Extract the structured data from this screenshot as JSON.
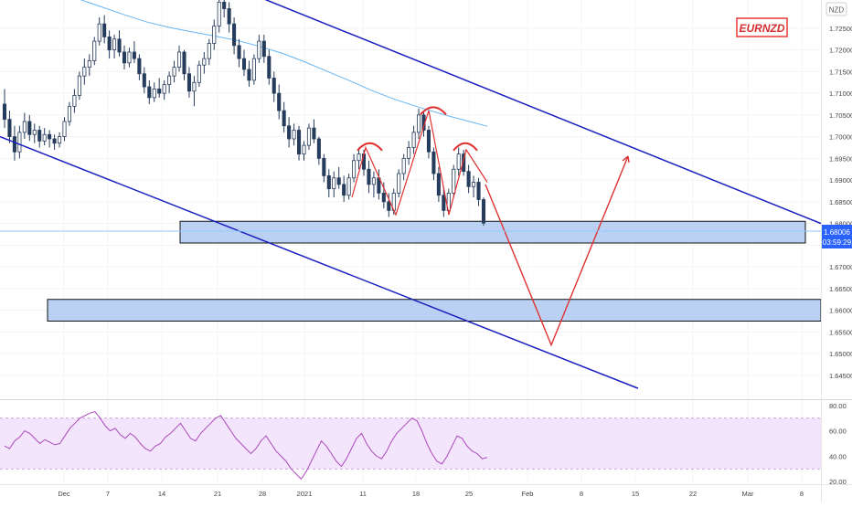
{
  "chart_data": {
    "type": "candlestick",
    "symbol_badge": "EURNZD",
    "currency_label": "NZD",
    "price_axis": {
      "ylim": [
        1.6395,
        1.7315
      ],
      "ticks": [
        "1.72500",
        "1.72000",
        "1.71500",
        "1.71000",
        "1.70500",
        "1.70000",
        "1.69500",
        "1.69000",
        "1.68500",
        "1.68000",
        "1.67500",
        "1.67000",
        "1.66500",
        "1.66000",
        "1.65500",
        "1.65000",
        "1.64500"
      ],
      "top_partial_label": "1.7"
    },
    "last_price": {
      "value": 1.68006,
      "label": "1.68006",
      "countdown": "03:59:29",
      "color": "#2962ff"
    },
    "time_axis": {
      "labels": [
        "Dec",
        "7",
        "14",
        "21",
        "28",
        "2021",
        "11",
        "18",
        "25",
        "Feb",
        "8",
        "15",
        "22",
        "Mar",
        "8"
      ]
    },
    "ohlc_series": [
      {
        "o": 1.7075,
        "h": 1.711,
        "l": 1.702,
        "c": 1.704
      },
      {
        "o": 1.704,
        "h": 1.706,
        "l": 1.6985,
        "c": 1.7
      },
      {
        "o": 1.7,
        "h": 1.7025,
        "l": 1.6945,
        "c": 1.6965
      },
      {
        "o": 1.6965,
        "h": 1.7025,
        "l": 1.695,
        "c": 1.701
      },
      {
        "o": 1.701,
        "h": 1.7055,
        "l": 1.6995,
        "c": 1.7035
      },
      {
        "o": 1.7035,
        "h": 1.705,
        "l": 1.699,
        "c": 1.7005
      },
      {
        "o": 1.7005,
        "h": 1.703,
        "l": 1.6985,
        "c": 1.7015
      },
      {
        "o": 1.7015,
        "h": 1.7025,
        "l": 1.6975,
        "c": 1.699
      },
      {
        "o": 1.699,
        "h": 1.702,
        "l": 1.698,
        "c": 1.7005
      },
      {
        "o": 1.7005,
        "h": 1.7015,
        "l": 1.6975,
        "c": 1.6995
      },
      {
        "o": 1.6995,
        "h": 1.7005,
        "l": 1.697,
        "c": 1.6985
      },
      {
        "o": 1.6985,
        "h": 1.701,
        "l": 1.6975,
        "c": 1.7
      },
      {
        "o": 1.7,
        "h": 1.7045,
        "l": 1.699,
        "c": 1.7035
      },
      {
        "o": 1.7035,
        "h": 1.708,
        "l": 1.7025,
        "c": 1.707
      },
      {
        "o": 1.707,
        "h": 1.711,
        "l": 1.7055,
        "c": 1.7095
      },
      {
        "o": 1.7095,
        "h": 1.715,
        "l": 1.7085,
        "c": 1.714
      },
      {
        "o": 1.714,
        "h": 1.718,
        "l": 1.712,
        "c": 1.716
      },
      {
        "o": 1.716,
        "h": 1.719,
        "l": 1.714,
        "c": 1.7175
      },
      {
        "o": 1.7175,
        "h": 1.723,
        "l": 1.7165,
        "c": 1.722
      },
      {
        "o": 1.722,
        "h": 1.7275,
        "l": 1.721,
        "c": 1.726
      },
      {
        "o": 1.726,
        "h": 1.728,
        "l": 1.7215,
        "c": 1.723
      },
      {
        "o": 1.723,
        "h": 1.7245,
        "l": 1.718,
        "c": 1.72
      },
      {
        "o": 1.72,
        "h": 1.7235,
        "l": 1.718,
        "c": 1.7225
      },
      {
        "o": 1.7225,
        "h": 1.7245,
        "l": 1.7185,
        "c": 1.7195
      },
      {
        "o": 1.7195,
        "h": 1.721,
        "l": 1.7155,
        "c": 1.717
      },
      {
        "o": 1.717,
        "h": 1.7205,
        "l": 1.716,
        "c": 1.7195
      },
      {
        "o": 1.7195,
        "h": 1.722,
        "l": 1.717,
        "c": 1.718
      },
      {
        "o": 1.718,
        "h": 1.719,
        "l": 1.713,
        "c": 1.7145
      },
      {
        "o": 1.7145,
        "h": 1.716,
        "l": 1.71,
        "c": 1.7115
      },
      {
        "o": 1.7115,
        "h": 1.713,
        "l": 1.7075,
        "c": 1.709
      },
      {
        "o": 1.709,
        "h": 1.7125,
        "l": 1.708,
        "c": 1.711
      },
      {
        "o": 1.711,
        "h": 1.7135,
        "l": 1.709,
        "c": 1.71
      },
      {
        "o": 1.71,
        "h": 1.713,
        "l": 1.7085,
        "c": 1.712
      },
      {
        "o": 1.712,
        "h": 1.715,
        "l": 1.71,
        "c": 1.714
      },
      {
        "o": 1.714,
        "h": 1.7175,
        "l": 1.7125,
        "c": 1.716
      },
      {
        "o": 1.716,
        "h": 1.721,
        "l": 1.715,
        "c": 1.7195
      },
      {
        "o": 1.7195,
        "h": 1.72,
        "l": 1.713,
        "c": 1.7145
      },
      {
        "o": 1.7145,
        "h": 1.716,
        "l": 1.709,
        "c": 1.7105
      },
      {
        "o": 1.7105,
        "h": 1.714,
        "l": 1.707,
        "c": 1.7125
      },
      {
        "o": 1.7125,
        "h": 1.7175,
        "l": 1.7115,
        "c": 1.7165
      },
      {
        "o": 1.7165,
        "h": 1.7195,
        "l": 1.7145,
        "c": 1.718
      },
      {
        "o": 1.718,
        "h": 1.7225,
        "l": 1.7165,
        "c": 1.7215
      },
      {
        "o": 1.7215,
        "h": 1.727,
        "l": 1.72,
        "c": 1.7255
      },
      {
        "o": 1.7255,
        "h": 1.733,
        "l": 1.724,
        "c": 1.731
      },
      {
        "o": 1.731,
        "h": 1.733,
        "l": 1.7275,
        "c": 1.7295
      },
      {
        "o": 1.7295,
        "h": 1.731,
        "l": 1.724,
        "c": 1.726
      },
      {
        "o": 1.726,
        "h": 1.7275,
        "l": 1.719,
        "c": 1.721
      },
      {
        "o": 1.721,
        "h": 1.7225,
        "l": 1.716,
        "c": 1.718
      },
      {
        "o": 1.718,
        "h": 1.72,
        "l": 1.714,
        "c": 1.7155
      },
      {
        "o": 1.7155,
        "h": 1.7175,
        "l": 1.7115,
        "c": 1.713
      },
      {
        "o": 1.713,
        "h": 1.719,
        "l": 1.712,
        "c": 1.718
      },
      {
        "o": 1.718,
        "h": 1.7235,
        "l": 1.717,
        "c": 1.722
      },
      {
        "o": 1.722,
        "h": 1.7235,
        "l": 1.717,
        "c": 1.7185
      },
      {
        "o": 1.7185,
        "h": 1.72,
        "l": 1.712,
        "c": 1.7135
      },
      {
        "o": 1.7135,
        "h": 1.715,
        "l": 1.708,
        "c": 1.71
      },
      {
        "o": 1.71,
        "h": 1.712,
        "l": 1.704,
        "c": 1.706
      },
      {
        "o": 1.706,
        "h": 1.708,
        "l": 1.701,
        "c": 1.7025
      },
      {
        "o": 1.7025,
        "h": 1.7045,
        "l": 1.6975,
        "c": 1.6995
      },
      {
        "o": 1.6995,
        "h": 1.703,
        "l": 1.698,
        "c": 1.7015
      },
      {
        "o": 1.7015,
        "h": 1.7025,
        "l": 1.6945,
        "c": 1.696
      },
      {
        "o": 1.696,
        "h": 1.699,
        "l": 1.6945,
        "c": 1.698
      },
      {
        "o": 1.698,
        "h": 1.703,
        "l": 1.697,
        "c": 1.702
      },
      {
        "o": 1.702,
        "h": 1.704,
        "l": 1.6985,
        "c": 1.6995
      },
      {
        "o": 1.6995,
        "h": 1.7,
        "l": 1.6935,
        "c": 1.695
      },
      {
        "o": 1.695,
        "h": 1.696,
        "l": 1.6895,
        "c": 1.691
      },
      {
        "o": 1.691,
        "h": 1.6925,
        "l": 1.686,
        "c": 1.688
      },
      {
        "o": 1.688,
        "h": 1.692,
        "l": 1.686,
        "c": 1.6905
      },
      {
        "o": 1.6905,
        "h": 1.693,
        "l": 1.688,
        "c": 1.689
      },
      {
        "o": 1.689,
        "h": 1.691,
        "l": 1.685,
        "c": 1.6865
      },
      {
        "o": 1.6865,
        "h": 1.6915,
        "l": 1.6855,
        "c": 1.6905
      },
      {
        "o": 1.6905,
        "h": 1.696,
        "l": 1.6895,
        "c": 1.6945
      },
      {
        "o": 1.6945,
        "h": 1.6975,
        "l": 1.6925,
        "c": 1.696
      },
      {
        "o": 1.696,
        "h": 1.697,
        "l": 1.691,
        "c": 1.6925
      },
      {
        "o": 1.6925,
        "h": 1.6945,
        "l": 1.687,
        "c": 1.689
      },
      {
        "o": 1.689,
        "h": 1.692,
        "l": 1.686,
        "c": 1.6905
      },
      {
        "o": 1.6905,
        "h": 1.6925,
        "l": 1.6855,
        "c": 1.687
      },
      {
        "o": 1.687,
        "h": 1.6895,
        "l": 1.6835,
        "c": 1.685
      },
      {
        "o": 1.685,
        "h": 1.687,
        "l": 1.6815,
        "c": 1.683
      },
      {
        "o": 1.683,
        "h": 1.688,
        "l": 1.682,
        "c": 1.687
      },
      {
        "o": 1.687,
        "h": 1.6925,
        "l": 1.686,
        "c": 1.6915
      },
      {
        "o": 1.6915,
        "h": 1.696,
        "l": 1.69,
        "c": 1.695
      },
      {
        "o": 1.695,
        "h": 1.699,
        "l": 1.6935,
        "c": 1.6975
      },
      {
        "o": 1.6975,
        "h": 1.7025,
        "l": 1.696,
        "c": 1.701
      },
      {
        "o": 1.701,
        "h": 1.7065,
        "l": 1.6995,
        "c": 1.705
      },
      {
        "o": 1.705,
        "h": 1.706,
        "l": 1.7,
        "c": 1.7015
      },
      {
        "o": 1.7015,
        "h": 1.7025,
        "l": 1.695,
        "c": 1.6965
      },
      {
        "o": 1.6965,
        "h": 1.6975,
        "l": 1.69,
        "c": 1.6915
      },
      {
        "o": 1.6915,
        "h": 1.693,
        "l": 1.685,
        "c": 1.6865
      },
      {
        "o": 1.6865,
        "h": 1.6885,
        "l": 1.6815,
        "c": 1.683
      },
      {
        "o": 1.683,
        "h": 1.688,
        "l": 1.682,
        "c": 1.687
      },
      {
        "o": 1.687,
        "h": 1.6935,
        "l": 1.686,
        "c": 1.6925
      },
      {
        "o": 1.6925,
        "h": 1.6975,
        "l": 1.691,
        "c": 1.696
      },
      {
        "o": 1.696,
        "h": 1.697,
        "l": 1.691,
        "c": 1.692
      },
      {
        "o": 1.692,
        "h": 1.6935,
        "l": 1.687,
        "c": 1.6885
      },
      {
        "o": 1.6885,
        "h": 1.691,
        "l": 1.686,
        "c": 1.6895
      },
      {
        "o": 1.6895,
        "h": 1.6905,
        "l": 1.684,
        "c": 1.6855
      },
      {
        "o": 1.6855,
        "h": 1.686,
        "l": 1.6795,
        "c": 1.6801
      }
    ],
    "moving_average": {
      "color": "#64b5f6",
      "values": [
        1.733,
        1.7318,
        1.73,
        1.7282,
        1.7265,
        1.7252,
        1.7242,
        1.7232,
        1.7222,
        1.7208,
        1.7192,
        1.7172,
        1.715,
        1.7128,
        1.7105,
        1.7085,
        1.7068,
        1.7052,
        1.7038,
        1.7024
      ]
    },
    "channel": {
      "color": "#1a1fbd",
      "upper": {
        "start": 1.734,
        "end": 1.68
      },
      "lower": {
        "start": 1.7,
        "end": 1.642
      }
    },
    "zones": [
      {
        "top": 1.6805,
        "bottom": 1.6755,
        "fill": "#bbd1f3"
      },
      {
        "top": 1.6625,
        "bottom": 1.6575,
        "fill": "#bbd1f3"
      }
    ],
    "projection": {
      "color": "#e03131",
      "path": [
        1.689,
        1.652,
        1.6955
      ]
    },
    "pattern": {
      "color": "#e03131",
      "zigzag": [
        1.686,
        1.6975,
        1.682,
        1.706,
        1.682,
        1.697,
        1.6895
      ],
      "caps": [
        1.6985,
        1.7068,
        1.6985
      ]
    },
    "rsi": {
      "axis_labels": [
        "80.00",
        "60.00",
        "40.00",
        "20.00"
      ],
      "ylim": [
        18,
        82
      ],
      "band": [
        70,
        30
      ],
      "band_color": "#f3e5fb",
      "line_color": "#ab47bc",
      "values": [
        48,
        46,
        52,
        55,
        60,
        58,
        54,
        50,
        53,
        51,
        49,
        50,
        56,
        62,
        66,
        70,
        72,
        74,
        75,
        70,
        64,
        60,
        62,
        57,
        54,
        58,
        55,
        50,
        46,
        44,
        48,
        50,
        55,
        58,
        62,
        66,
        60,
        54,
        52,
        58,
        62,
        66,
        70,
        72,
        66,
        60,
        54,
        50,
        46,
        42,
        46,
        52,
        56,
        50,
        44,
        40,
        36,
        30,
        26,
        22,
        28,
        36,
        44,
        52,
        48,
        42,
        36,
        32,
        38,
        46,
        54,
        58,
        50,
        44,
        40,
        38,
        44,
        52,
        58,
        62,
        66,
        70,
        68,
        60,
        50,
        42,
        36,
        34,
        40,
        48,
        56,
        54,
        48,
        44,
        42,
        38,
        39
      ]
    }
  }
}
